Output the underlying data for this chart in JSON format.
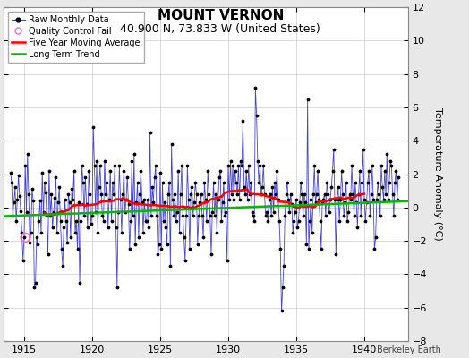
{
  "title": "MOUNT VERNON",
  "subtitle": "40.900 N, 73.833 W (United States)",
  "ylabel": "Temperature Anomaly (°C)",
  "watermark": "Berkeley Earth",
  "ylim": [
    -8,
    12
  ],
  "yticks": [
    -8,
    -6,
    -4,
    -2,
    0,
    2,
    4,
    6,
    8,
    10,
    12
  ],
  "xlim": [
    1913.5,
    1943.2
  ],
  "xticks": [
    1915,
    1920,
    1925,
    1930,
    1935,
    1940
  ],
  "bg_color": "#e8e8e8",
  "plot_bg_color": "#ffffff",
  "raw_line_color": "#4444cc",
  "raw_dot_color": "#000000",
  "qc_fail_color": "#ff69b4",
  "moving_avg_color": "#ff0000",
  "trend_color": "#00bb00",
  "raw_monthly_data": [
    1914.0,
    2.1,
    1914.083,
    1.5,
    1914.167,
    -0.5,
    1914.25,
    0.3,
    1914.333,
    1.2,
    1914.417,
    -0.8,
    1914.5,
    0.5,
    1914.583,
    1.9,
    1914.667,
    0.7,
    1914.75,
    -0.2,
    1914.833,
    -1.5,
    1914.917,
    -3.2,
    1915.0,
    -1.8,
    1915.083,
    2.5,
    1915.167,
    -0.3,
    1915.25,
    3.2,
    1915.333,
    0.8,
    1915.417,
    -2.1,
    1915.5,
    -1.5,
    1915.583,
    1.1,
    1915.667,
    0.4,
    1915.75,
    -4.8,
    1915.833,
    -4.5,
    1915.917,
    -1.8,
    1916.0,
    -2.2,
    1916.083,
    -0.8,
    1916.167,
    0.4,
    1916.25,
    -1.5,
    1916.333,
    2.1,
    1916.417,
    -0.3,
    1916.5,
    1.5,
    1916.583,
    0.9,
    1916.667,
    -0.5,
    1916.75,
    -2.8,
    1916.833,
    2.2,
    1916.917,
    -0.5,
    1917.0,
    0.8,
    1917.083,
    -1.2,
    1917.167,
    -0.3,
    1917.25,
    0.6,
    1917.333,
    1.8,
    1917.417,
    -1.5,
    1917.5,
    0.3,
    1917.583,
    1.2,
    1917.667,
    -0.8,
    1917.75,
    -2.5,
    1917.833,
    -3.5,
    1917.917,
    -1.2,
    1918.0,
    0.5,
    1918.083,
    -0.8,
    1918.167,
    -2.1,
    1918.25,
    0.8,
    1918.333,
    0.3,
    1918.417,
    -1.8,
    1918.5,
    1.1,
    1918.583,
    0.5,
    1918.667,
    2.2,
    1918.75,
    -1.5,
    1918.833,
    -0.8,
    1918.917,
    -2.5,
    1919.0,
    0.3,
    1919.083,
    -4.5,
    1919.167,
    -0.8,
    1919.25,
    2.5,
    1919.333,
    1.5,
    1919.417,
    -0.5,
    1919.5,
    1.8,
    1919.583,
    0.2,
    1919.667,
    -1.2,
    1919.75,
    2.2,
    1919.833,
    0.8,
    1919.917,
    -1.0,
    1920.0,
    -0.5,
    1920.083,
    4.8,
    1920.167,
    2.5,
    1920.25,
    -0.3,
    1920.333,
    2.8,
    1920.417,
    -1.5,
    1920.5,
    1.2,
    1920.583,
    2.5,
    1920.667,
    0.8,
    1920.75,
    -0.5,
    1920.833,
    -0.8,
    1920.917,
    2.8,
    1921.0,
    0.8,
    1921.083,
    1.5,
    1921.167,
    -1.2,
    1921.25,
    0.5,
    1921.333,
    2.2,
    1921.417,
    -0.8,
    1921.5,
    1.5,
    1921.583,
    0.8,
    1921.667,
    2.5,
    1921.75,
    -1.2,
    1921.833,
    -4.8,
    1921.917,
    -0.3,
    1922.0,
    2.5,
    1922.083,
    0.5,
    1922.167,
    -1.5,
    1922.25,
    0.8,
    1922.333,
    2.2,
    1922.417,
    -0.3,
    1922.5,
    0.5,
    1922.583,
    1.8,
    1922.667,
    0.2,
    1922.75,
    -2.5,
    1922.833,
    -0.8,
    1922.917,
    2.8,
    1923.0,
    -0.5,
    1923.083,
    3.2,
    1923.167,
    -2.2,
    1923.25,
    0.3,
    1923.333,
    1.5,
    1923.417,
    -1.8,
    1923.5,
    0.8,
    1923.583,
    2.2,
    1923.667,
    0.3,
    1923.75,
    -1.5,
    1923.833,
    0.5,
    1923.917,
    -0.8,
    1924.0,
    -0.8,
    1924.083,
    0.5,
    1924.167,
    -1.2,
    1924.25,
    4.5,
    1924.333,
    -0.5,
    1924.417,
    1.2,
    1924.5,
    0.3,
    1924.583,
    1.8,
    1924.667,
    2.5,
    1924.75,
    -0.5,
    1924.833,
    -2.8,
    1924.917,
    -2.2,
    1925.0,
    2.1,
    1925.083,
    -2.5,
    1925.167,
    1.5,
    1925.25,
    -0.8,
    1925.333,
    0.3,
    1925.417,
    -1.2,
    1925.5,
    -2.2,
    1925.583,
    0.8,
    1925.667,
    1.5,
    1925.75,
    -3.5,
    1925.833,
    3.8,
    1925.917,
    0.5,
    1926.0,
    -0.5,
    1926.083,
    0.8,
    1926.167,
    -0.8,
    1926.25,
    -0.3,
    1926.333,
    2.2,
    1926.417,
    -1.5,
    1926.5,
    0.8,
    1926.583,
    2.5,
    1926.667,
    -0.5,
    1926.75,
    -1.8,
    1926.833,
    -3.2,
    1926.917,
    -0.5,
    1927.0,
    2.5,
    1927.083,
    0.5,
    1927.167,
    -2.5,
    1927.25,
    0.8,
    1927.333,
    1.2,
    1927.417,
    -0.5,
    1927.5,
    0.3,
    1927.583,
    1.5,
    1927.667,
    0.8,
    1927.75,
    -2.2,
    1927.833,
    -0.5,
    1927.917,
    0.3,
    1928.0,
    0.8,
    1928.083,
    -0.5,
    1928.167,
    -1.8,
    1928.25,
    1.5,
    1928.333,
    0.5,
    1928.417,
    -0.8,
    1928.5,
    2.2,
    1928.583,
    0.8,
    1928.667,
    -0.5,
    1928.75,
    -2.8,
    1928.833,
    -0.3,
    1928.917,
    1.5,
    1929.0,
    -0.5,
    1929.083,
    0.8,
    1929.167,
    -1.5,
    1929.25,
    0.5,
    1929.333,
    1.8,
    1929.417,
    2.2,
    1929.5,
    -0.8,
    1929.583,
    0.3,
    1929.667,
    1.5,
    1929.75,
    -0.5,
    1929.833,
    -0.3,
    1929.917,
    -3.2,
    1930.0,
    2.5,
    1930.083,
    0.5,
    1930.167,
    2.8,
    1930.25,
    0.8,
    1930.333,
    2.5,
    1930.417,
    0.5,
    1930.5,
    2.2,
    1930.583,
    1.5,
    1930.667,
    0.8,
    1930.75,
    2.5,
    1930.833,
    0.5,
    1930.917,
    2.8,
    1931.0,
    2.5,
    1931.083,
    5.2,
    1931.167,
    1.2,
    1931.25,
    0.8,
    1931.333,
    2.2,
    1931.417,
    0.5,
    1931.5,
    2.5,
    1931.583,
    0.8,
    1931.667,
    1.5,
    1931.75,
    -0.3,
    1931.833,
    -0.5,
    1931.917,
    -0.8,
    1932.0,
    7.2,
    1932.083,
    5.5,
    1932.167,
    2.8,
    1932.25,
    1.5,
    1932.333,
    2.5,
    1932.417,
    0.8,
    1932.5,
    1.2,
    1932.583,
    2.5,
    1932.667,
    0.8,
    1932.75,
    -0.5,
    1932.833,
    -0.3,
    1932.917,
    -0.8,
    1933.0,
    0.5,
    1933.083,
    0.8,
    1933.167,
    -0.5,
    1933.25,
    1.2,
    1933.333,
    -0.3,
    1933.417,
    1.5,
    1933.5,
    0.8,
    1933.583,
    2.2,
    1933.667,
    0.5,
    1933.75,
    -0.8,
    1933.833,
    -2.5,
    1933.917,
    -6.2,
    1934.0,
    -4.8,
    1934.083,
    -3.5,
    1934.167,
    -0.5,
    1934.25,
    0.8,
    1934.333,
    1.5,
    1934.417,
    0.5,
    1934.5,
    -0.3,
    1934.583,
    0.8,
    1934.667,
    0.2,
    1934.75,
    -1.5,
    1934.833,
    -0.8,
    1934.917,
    -0.3,
    1935.0,
    0.5,
    1935.083,
    -1.2,
    1935.167,
    -0.8,
    1935.25,
    0.3,
    1935.333,
    1.5,
    1935.417,
    0.8,
    1935.5,
    -0.5,
    1935.583,
    0.8,
    1935.667,
    0.3,
    1935.75,
    -2.2,
    1935.833,
    6.5,
    1935.917,
    -2.5,
    1936.0,
    -0.8,
    1936.083,
    0.5,
    1936.167,
    -1.5,
    1936.25,
    0.8,
    1936.333,
    2.5,
    1936.417,
    0.3,
    1936.5,
    0.8,
    1936.583,
    2.2,
    1936.667,
    0.5,
    1936.75,
    -0.8,
    1936.833,
    -2.5,
    1936.917,
    0.3,
    1937.0,
    0.5,
    1937.083,
    0.8,
    1937.167,
    -0.5,
    1937.25,
    1.5,
    1937.333,
    0.8,
    1937.417,
    -0.3,
    1937.5,
    0.5,
    1937.583,
    1.2,
    1937.667,
    2.2,
    1937.75,
    3.5,
    1937.833,
    0.5,
    1937.917,
    -2.8,
    1938.0,
    0.5,
    1938.083,
    1.2,
    1938.167,
    -0.8,
    1938.25,
    0.5,
    1938.333,
    2.2,
    1938.417,
    0.8,
    1938.5,
    -0.5,
    1938.583,
    0.3,
    1938.667,
    1.5,
    1938.75,
    -0.8,
    1938.833,
    -0.3,
    1938.917,
    0.8,
    1939.0,
    0.5,
    1939.083,
    2.5,
    1939.167,
    0.8,
    1939.25,
    -0.5,
    1939.333,
    1.5,
    1939.417,
    0.3,
    1939.5,
    -1.2,
    1939.583,
    0.8,
    1939.667,
    2.2,
    1939.75,
    -0.5,
    1939.833,
    1.5,
    1939.917,
    3.5,
    1940.0,
    0.5,
    1940.083,
    -0.8,
    1940.167,
    0.3,
    1940.25,
    1.5,
    1940.333,
    2.2,
    1940.417,
    -0.5,
    1940.5,
    0.8,
    1940.583,
    2.5,
    1940.667,
    0.5,
    1940.75,
    -2.5,
    1940.833,
    -1.8,
    1940.917,
    0.5,
    1941.0,
    1.5,
    1941.083,
    0.8,
    1941.167,
    -0.5,
    1941.25,
    2.5,
    1941.333,
    1.2,
    1941.417,
    0.5,
    1941.5,
    2.2,
    1941.583,
    0.8,
    1941.667,
    3.2,
    1941.75,
    0.5,
    1941.833,
    1.5,
    1941.917,
    2.8,
    1942.0,
    2.5,
    1942.083,
    0.8,
    1942.167,
    -0.5,
    1942.25,
    1.5,
    1942.333,
    2.2,
    1942.417,
    0.5,
    1942.5,
    1.8
  ],
  "qc_fail_x": [
    1915.083
  ],
  "qc_fail_y": [
    -1.8
  ],
  "trend_x": [
    1913.5,
    1943.2
  ],
  "trend_y": [
    -0.52,
    0.38
  ],
  "grid_color": "#cccccc",
  "title_fontsize": 11,
  "subtitle_fontsize": 9,
  "tick_fontsize": 8,
  "ylabel_fontsize": 8,
  "legend_fontsize": 7,
  "watermark_fontsize": 7
}
